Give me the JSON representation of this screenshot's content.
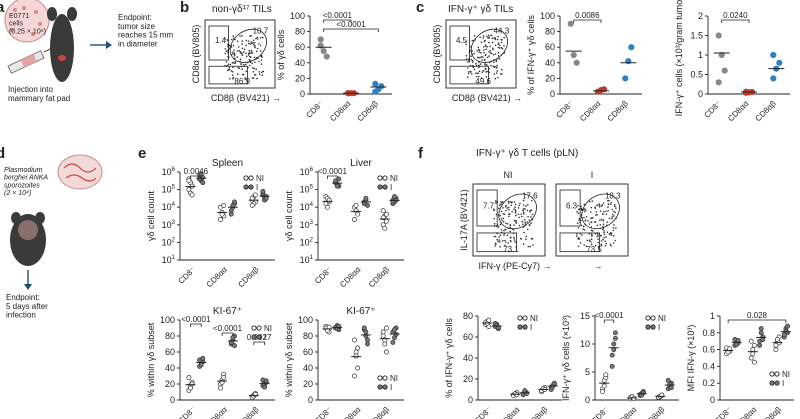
{
  "panels": {
    "a": {
      "label": "a",
      "cells": "E0771\ncells\n(0.25 × 10⁶)",
      "injection": "Injection into\nmammary fat pad",
      "endpoint": "Endpoint:\ntumor size\nreaches 15 mm\nin diameter"
    },
    "b": {
      "label": "b",
      "title": "non-γδ¹⁷ TILs",
      "flow_y": "CD8α (BV805)",
      "flow_x": "CD8β (BV421)",
      "gates": [
        "1.4",
        "10.7",
        "86.9"
      ]
    },
    "c": {
      "label": "c",
      "title": "IFN-γ⁺ γδ TILs",
      "flow_y": "CD8α (BV805)",
      "flow_x": "CD8β (BV421)",
      "gates": [
        "4.5",
        "44.3",
        "49.6"
      ]
    },
    "d": {
      "label": "d",
      "sporozoites": "Plasmodium\nberghei ANKA\nsporozoites\n(2 × 10⁴)",
      "endpoint": "Endpoint:\n5 days after\ninfection"
    },
    "e": {
      "label": "e"
    },
    "f": {
      "label": "f",
      "title": "IFN-γ⁺ γδ T cells (pLN)",
      "flow_y": "IL-17A (BV421)",
      "flow_x": "IFN-γ (PE-Cy7)",
      "ni": {
        "name": "NI",
        "gates": [
          "7.7",
          "17.6",
          "73.1"
        ]
      },
      "i": {
        "name": "I",
        "gates": [
          "6.3",
          "18.3",
          "73.5"
        ]
      }
    }
  },
  "legend": {
    "ni": "NI",
    "i": "I"
  },
  "colors": {
    "cd8": "#888888",
    "cd8aa": "#c0392b",
    "cd8ab": "#2f7fc1",
    "ni_fill": "#ffffff",
    "i_fill": "#777777"
  },
  "chart_data": [
    {
      "id": "b_pct",
      "type": "scatter",
      "title": "",
      "ylabel": "% of γδ cells",
      "ylim": [
        0,
        100
      ],
      "yticks": [
        0,
        20,
        40,
        60,
        80,
        100
      ],
      "categories": [
        "CD8⁻",
        "CD8αα",
        "CD8αβ"
      ],
      "values": [
        [
          62,
          55,
          48,
          70
        ],
        [
          1,
          1,
          1,
          1
        ],
        [
          3,
          6,
          10,
          13
        ]
      ],
      "means": [
        60,
        1,
        9
      ],
      "sig": [
        {
          "from": 0,
          "to": 1,
          "label": "<0.0001"
        },
        {
          "from": 0,
          "to": 2,
          "label": "<0.0001"
        }
      ]
    },
    {
      "id": "c_pct",
      "type": "scatter",
      "title": "",
      "ylabel": "% of IFN-γ⁺ γδ cells",
      "ylim": [
        0,
        100
      ],
      "yticks": [
        0,
        20,
        40,
        60,
        80,
        100
      ],
      "categories": [
        "CD8⁻",
        "CD8αα",
        "CD8αβ"
      ],
      "values": [
        [
          90,
          50,
          40
        ],
        [
          3,
          5,
          6
        ],
        [
          20,
          42,
          60
        ]
      ],
      "means": [
        55,
        4,
        40
      ],
      "sig": [
        {
          "from": 0,
          "to": 1,
          "label": "0.0086"
        }
      ]
    },
    {
      "id": "c_abs",
      "type": "scatter",
      "title": "",
      "ylabel": "IFN-γ⁺ cells (×10³/gram tumor)",
      "ylim": [
        0,
        2
      ],
      "yticks": [
        0,
        0.5,
        1.0,
        1.5,
        2.0
      ],
      "categories": [
        "CD8⁻",
        "CD8αα",
        "CD8αβ"
      ],
      "values": [
        [
          1.5,
          1.0,
          0.6,
          0.3
        ],
        [
          0.03,
          0.04,
          0.05,
          0.06
        ],
        [
          0.4,
          0.65,
          0.8,
          1.0
        ]
      ],
      "means": [
        1.05,
        0.05,
        0.65
      ],
      "sig": [
        {
          "from": 0,
          "to": 1,
          "label": "0.0240"
        }
      ]
    },
    {
      "id": "e_spleen",
      "type": "scatter",
      "title": "Spleen",
      "ylabel": "γδ cell count",
      "log": true,
      "ylim": [
        1,
        6
      ],
      "yticks": [
        1,
        2,
        3,
        4,
        5,
        6
      ],
      "categories": [
        "CD8⁻",
        "CD8αα",
        "CD8αβ"
      ],
      "paired": true,
      "ni": [
        [
          5.6,
          5.4,
          5.2,
          5.0,
          4.8,
          4.7,
          5.5
        ],
        [
          4.0,
          3.7,
          3.5,
          3.3,
          3.6,
          4.1
        ],
        [
          4.4,
          4.6,
          4.3,
          4.5,
          4.2,
          4.7,
          4.1
        ]
      ],
      "i": [
        [
          5.8,
          5.9,
          5.7,
          5.6,
          5.5,
          5.4,
          5.6
        ],
        [
          3.8,
          4.0,
          4.2,
          3.6,
          4.1,
          4.3
        ],
        [
          4.7,
          4.5,
          4.6,
          4.8,
          4.4,
          4.5,
          4.9
        ]
      ],
      "sig": [
        {
          "from": 0,
          "to": 0,
          "label": "0.0046"
        }
      ]
    },
    {
      "id": "e_liver",
      "type": "scatter",
      "title": "Liver",
      "ylabel": "γδ cell count",
      "log": true,
      "ylim": [
        1,
        6
      ],
      "yticks": [
        1,
        2,
        3,
        4,
        5,
        6
      ],
      "categories": [
        "CD8⁻",
        "CD8αα",
        "CD8αβ"
      ],
      "paired": true,
      "ni": [
        [
          4.6,
          4.5,
          4.3,
          4.2,
          4.0,
          4.4
        ],
        [
          4.0,
          3.8,
          3.6,
          3.3,
          4.1
        ],
        [
          3.8,
          3.5,
          3.2,
          3.0,
          2.8,
          3.6,
          3.4
        ]
      ],
      "i": [
        [
          5.4,
          5.3,
          5.2,
          5.5,
          5.2,
          5.6
        ],
        [
          4.3,
          4.4,
          4.1,
          4.2,
          4.5
        ],
        [
          4.4,
          4.3,
          4.5,
          4.2,
          4.6,
          4.4,
          4.3
        ]
      ],
      "sig": [
        {
          "from": 0,
          "to": 0,
          "label": "<0.0001"
        }
      ]
    },
    {
      "id": "e_ki67_pct",
      "type": "scatter",
      "title": "KI-67⁺",
      "ylabel": "% within γδ subset",
      "ylim": [
        0,
        100
      ],
      "yticks": [
        0,
        20,
        40,
        60,
        80,
        100
      ],
      "categories": [
        "CD8⁻",
        "CD8αα",
        "CD8αβ"
      ],
      "paired": true,
      "ni": [
        [
          12,
          18,
          22,
          28,
          15,
          20
        ],
        [
          20,
          25,
          32,
          15,
          22,
          28
        ],
        [
          4,
          6,
          8,
          3,
          5,
          7
        ]
      ],
      "i": [
        [
          42,
          45,
          48,
          50,
          44,
          52
        ],
        [
          70,
          75,
          80,
          72,
          78,
          68
        ],
        [
          18,
          20,
          22,
          25,
          16,
          24
        ]
      ],
      "sig": [
        {
          "from": 0,
          "to": 0,
          "label": "<0.0001"
        },
        {
          "from": 1,
          "to": 1,
          "label": "<0.0001"
        },
        {
          "from": 2,
          "to": 2,
          "label": "0.0027"
        }
      ]
    },
    {
      "id": "e_ki67_pct_liver",
      "type": "scatter",
      "title": "KI-67⁺",
      "ylabel": "% within γδ subset",
      "ylim": [
        0,
        100
      ],
      "yticks": [
        0,
        20,
        40,
        60,
        80,
        100
      ],
      "categories": [
        "CD8⁻",
        "CD8αα",
        "CD8αβ"
      ],
      "paired": true,
      "ni": [
        [
          92,
          88,
          85,
          90,
          87,
          91
        ],
        [
          75,
          60,
          40,
          30,
          55,
          65
        ],
        [
          85,
          70,
          60,
          80,
          75,
          90
        ]
      ],
      "i": [
        [
          90,
          93,
          88,
          91,
          89,
          92
        ],
        [
          88,
          80,
          70,
          90,
          85,
          75
        ],
        [
          85,
          78,
          90,
          72,
          88,
          82
        ]
      ],
      "sig": []
    },
    {
      "id": "f_pct",
      "type": "scatter",
      "title": "",
      "ylabel": "% of IFN-γ⁺ γδ cells",
      "ylim": [
        0,
        80
      ],
      "yticks": [
        0,
        20,
        40,
        60,
        80
      ],
      "categories": [
        "CD8⁻",
        "CD8αα",
        "CD8αβ"
      ],
      "paired": true,
      "ni": [
        [
          72,
          75,
          70,
          74,
          73,
          76
        ],
        [
          5,
          6,
          7,
          4,
          6,
          5
        ],
        [
          8,
          10,
          12,
          9,
          11,
          10
        ]
      ],
      "i": [
        [
          70,
          72,
          68,
          73,
          71,
          69
        ],
        [
          6,
          8,
          7,
          5,
          9,
          6
        ],
        [
          12,
          14,
          15,
          10,
          13,
          16
        ]
      ],
      "sig": []
    },
    {
      "id": "f_abs",
      "type": "scatter",
      "title": "",
      "ylabel": "IFN-γ⁺ γδ cells (×10³)",
      "ylim": [
        0,
        15
      ],
      "yticks": [
        0,
        5,
        10,
        15
      ],
      "categories": [
        "CD8⁻",
        "CD8αα",
        "CD8αβ"
      ],
      "paired": true,
      "ni": [
        [
          2.0,
          3.5,
          4.0,
          1.5,
          2.5,
          4.5
        ],
        [
          0.2,
          0.4,
          0.3,
          0.5,
          0.6,
          0.3
        ],
        [
          0.4,
          0.6,
          0.8,
          0.5,
          0.7,
          0.9
        ]
      ],
      "i": [
        [
          8,
          10,
          11,
          6,
          9,
          12
        ],
        [
          0.8,
          1.2,
          1.5,
          1.0,
          0.9,
          1.3
        ],
        [
          2.0,
          2.5,
          3.0,
          3.5,
          2.8,
          2.2
        ]
      ],
      "sig": [
        {
          "from": 0,
          "to": 0,
          "label": "<0.0001"
        }
      ]
    },
    {
      "id": "f_mfi",
      "type": "scatter",
      "title": "",
      "ylabel": "MFI IFN-γ (×10³)",
      "ylim": [
        0,
        1
      ],
      "yticks": [
        0,
        0.2,
        0.4,
        0.6,
        0.8,
        1.0
      ],
      "categories": [
        "CD8⁻",
        "CD8αα",
        "CD8αβ"
      ],
      "paired": true,
      "ni": [
        [
          0.55,
          0.6,
          0.58,
          0.62,
          0.57,
          0.61
        ],
        [
          0.5,
          0.6,
          0.65,
          0.7,
          0.55,
          0.45
        ],
        [
          0.6,
          0.7,
          0.75,
          0.65,
          0.72,
          0.68
        ]
      ],
      "i": [
        [
          0.65,
          0.7,
          0.68,
          0.72,
          0.66,
          0.71
        ],
        [
          0.7,
          0.8,
          0.75,
          0.65,
          0.85,
          0.72
        ],
        [
          0.75,
          0.85,
          0.8,
          0.78,
          0.82,
          0.88
        ]
      ],
      "sig": [
        {
          "from": 0,
          "to": 2,
          "label": "0.028"
        }
      ]
    }
  ]
}
